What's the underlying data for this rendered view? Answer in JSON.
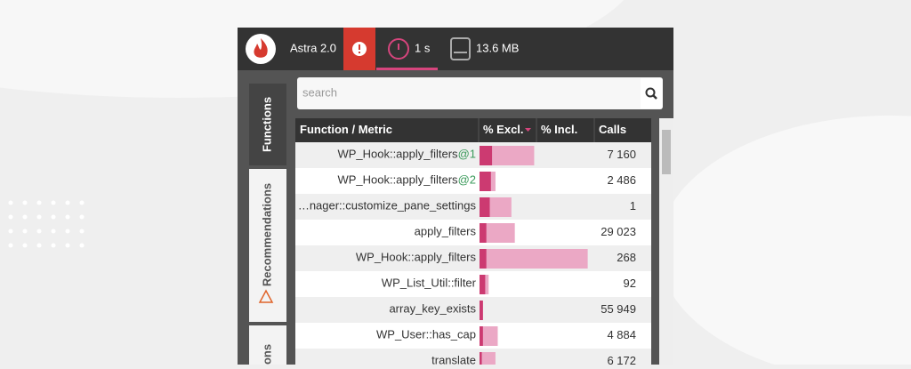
{
  "header": {
    "app": "Astra 2.0",
    "time": "1 s",
    "memory": "13.6 MB"
  },
  "search": {
    "placeholder": "search"
  },
  "tabs": [
    "Functions",
    "Recommendations",
    "tions"
  ],
  "table": {
    "columns": [
      "Function / Metric",
      "% Excl.",
      "% Incl.",
      "Calls"
    ],
    "rows": [
      {
        "name": "WP_Hook::apply_filters",
        "suffix": "@1",
        "excl": 11,
        "incl": 48,
        "calls": "7 160"
      },
      {
        "name": "WP_Hook::apply_filters",
        "suffix": "@2",
        "excl": 10,
        "incl": 14,
        "calls": "2 486"
      },
      {
        "name": "…nager::customize_pane_settings",
        "excl": 9,
        "incl": 28,
        "calls": "1"
      },
      {
        "name": "apply_filters",
        "excl": 6,
        "incl": 31,
        "calls": "29 023"
      },
      {
        "name": "WP_Hook::apply_filters",
        "excl": 6,
        "incl": 95,
        "calls": "268"
      },
      {
        "name": "WP_List_Util::filter",
        "excl": 5,
        "incl": 8,
        "calls": "92"
      },
      {
        "name": "array_key_exists",
        "excl": 3,
        "incl": 3,
        "calls": "55 949"
      },
      {
        "name": "WP_User::has_cap",
        "excl": 3,
        "incl": 16,
        "calls": "4 884"
      },
      {
        "name": "translate",
        "excl": 2,
        "incl": 14,
        "calls": "6 172"
      }
    ]
  }
}
